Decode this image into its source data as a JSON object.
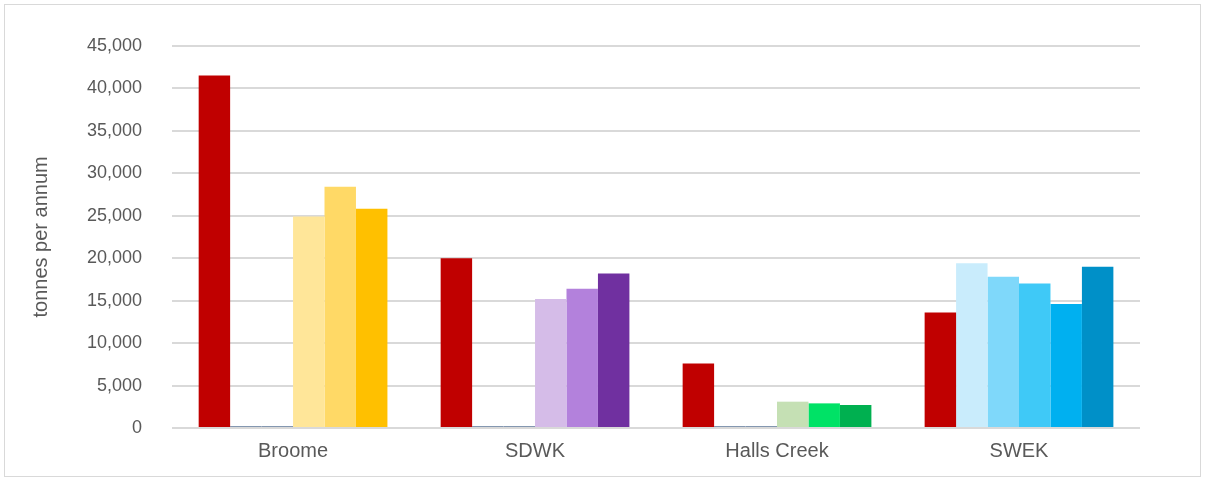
{
  "chart_data": {
    "type": "bar",
    "ylabel": "tonnes per annum",
    "categories": [
      "Broome",
      "SDWK",
      "Halls Creek",
      "SWEK"
    ],
    "series": [
      {
        "colors": [
          "#c00000",
          "#c00000",
          "#c00000",
          "#c00000"
        ],
        "values": [
          41500,
          20000,
          7600,
          13600
        ]
      },
      {
        "colors": [
          "#8497b0",
          "#8497b0",
          "#8497b0",
          "#c9ecfc"
        ],
        "values": [
          0,
          0,
          0,
          19400
        ]
      },
      {
        "colors": [
          "#8497b0",
          "#8497b0",
          "#8497b0",
          "#7fd8fa"
        ],
        "values": [
          0,
          0,
          0,
          17800
        ]
      },
      {
        "colors": [
          "#ffe699",
          "#d5bce8",
          "#c5e0b4",
          "#3fc9f7"
        ],
        "values": [
          24900,
          15200,
          3100,
          17000
        ]
      },
      {
        "colors": [
          "#ffd966",
          "#b381dc",
          "#00e266",
          "#00b0f0"
        ],
        "values": [
          28400,
          16400,
          2900,
          14600
        ]
      },
      {
        "colors": [
          "#ffc000",
          "#7030a0",
          "#00b050",
          "#0090c8"
        ],
        "values": [
          25800,
          18200,
          2700,
          19000
        ]
      }
    ],
    "ylim": [
      0,
      45000
    ],
    "yticks": [
      {
        "value": 0,
        "label": "0"
      },
      {
        "value": 5000,
        "label": "5,000"
      },
      {
        "value": 10000,
        "label": "10,000"
      },
      {
        "value": 15000,
        "label": "15,000"
      },
      {
        "value": 20000,
        "label": "20,000"
      },
      {
        "value": 25000,
        "label": "25,000"
      },
      {
        "value": 30000,
        "label": "30,000"
      },
      {
        "value": 35000,
        "label": "35,000"
      },
      {
        "value": 40000,
        "label": "40,000"
      },
      {
        "value": 45000,
        "label": "45,000"
      }
    ],
    "grid": "y",
    "legend": false
  }
}
